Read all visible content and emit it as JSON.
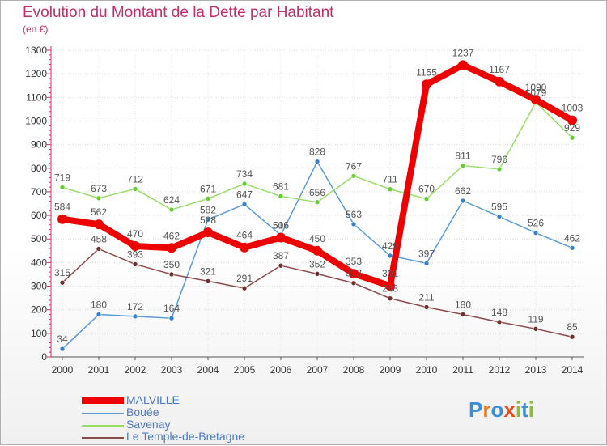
{
  "title": "Evolution du Montant de la Dette par Habitant",
  "subtitle": "(en €)",
  "logo": {
    "letters": [
      "P",
      "r",
      "o",
      "x",
      "i",
      "t",
      "i"
    ],
    "colors": [
      "#3a8fd8",
      "#e87a1e",
      "#3a8fd8",
      "#e84a1e",
      "#88c030",
      "#3a8fd8",
      "#88c030"
    ]
  },
  "chart_data": {
    "type": "line",
    "title": "Evolution du Montant de la Dette par Habitant",
    "subtitle": "(en €)",
    "x": [
      "2000",
      "2001",
      "2002",
      "2003",
      "2004",
      "2005",
      "2006",
      "2007",
      "2008",
      "2009",
      "2010",
      "2011",
      "2012",
      "2013",
      "2014"
    ],
    "ylim": [
      0,
      1300
    ],
    "yticks": [
      "0",
      "100",
      "200",
      "300",
      "400",
      "500",
      "600",
      "700",
      "800",
      "900",
      "1000",
      "1100",
      "1200",
      "1300"
    ],
    "grid": "horizontal",
    "legend_position": "bottom-left",
    "series": [
      {
        "name": "MALVILLE",
        "values": [
          584,
          562,
          470,
          462,
          528,
          464,
          506,
          450,
          353,
          301,
          1155,
          1237,
          1167,
          1090,
          1003
        ],
        "labels": [
          "584",
          "562",
          "470",
          "462",
          "528",
          "464",
          "506",
          "450",
          "353",
          "301",
          "1155",
          "1237",
          "1167",
          "1090",
          "1003"
        ],
        "color": "#ee0000",
        "dot_fill": "#ee0000",
        "label_color": "#555555",
        "width": 8,
        "dot_radius": 6
      },
      {
        "name": "Bouée",
        "values": [
          34,
          180,
          172,
          164,
          582,
          647,
          516,
          828,
          563,
          429,
          397,
          662,
          595,
          526,
          462
        ],
        "labels": [
          "34",
          "180",
          "172",
          "164",
          "582",
          "647",
          "516",
          "828",
          "563",
          "429",
          "397",
          "662",
          "595",
          "526",
          "462"
        ],
        "color": "#5b9bd5",
        "dot_fill": "#3a82c8",
        "label_color": "#555555",
        "width": 1.5,
        "dot_radius": 3
      },
      {
        "name": "Savenay",
        "values": [
          719,
          673,
          712,
          624,
          671,
          734,
          681,
          656,
          767,
          711,
          670,
          811,
          796,
          1079,
          929
        ],
        "labels": [
          "719",
          "673",
          "712",
          "624",
          "671",
          "734",
          "681",
          "656",
          "767",
          "711",
          "670",
          "811",
          "796",
          "1079",
          "929"
        ],
        "color": "#99dd66",
        "dot_fill": "#66cc33",
        "label_color": "#555555",
        "width": 1.5,
        "dot_radius": 3
      },
      {
        "name": "Le Temple-de-Bretagne",
        "values": [
          315,
          458,
          393,
          350,
          321,
          291,
          387,
          352,
          313,
          248,
          211,
          180,
          148,
          119,
          85
        ],
        "labels": [
          "315",
          "458",
          "393",
          "350",
          "321",
          "291",
          "387",
          "352",
          "313",
          "248",
          "211",
          "180",
          "148",
          "119",
          "85"
        ],
        "color": "#8b4a4a",
        "dot_fill": "#6e2e2e",
        "label_color": "#555555",
        "width": 1.5,
        "dot_radius": 3
      }
    ]
  }
}
